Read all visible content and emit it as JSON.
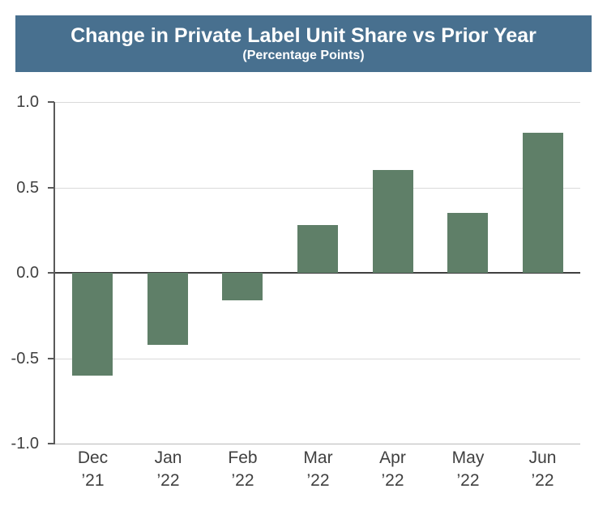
{
  "header": {
    "title": "Change in Private Label Unit Share vs Prior Year",
    "subtitle": "(Percentage Points)"
  },
  "chart_data": {
    "type": "bar",
    "title": "Change in Private Label Unit Share vs Prior Year",
    "subtitle": "(Percentage Points)",
    "categories": [
      "Dec ’21",
      "Jan ’22",
      "Feb ’22",
      "Mar ’22",
      "Apr ’22",
      "May ’22",
      "Jun ’22"
    ],
    "values": [
      -0.6,
      -0.42,
      -0.16,
      0.28,
      0.6,
      0.35,
      0.82
    ],
    "xlabel": "",
    "ylabel": "",
    "ylim": [
      -1.0,
      1.0
    ],
    "yticks": [
      1.0,
      0.5,
      0.0,
      -0.5,
      -1.0
    ],
    "ytick_labels": [
      "1.0",
      "0.5",
      "0.0",
      "-0.5",
      "-1.0"
    ],
    "grid": true,
    "legend": "none"
  },
  "colors": {
    "header_bg": "#48708f",
    "header_text": "#ffffff",
    "bar": "#5f7f68",
    "axis": "#595959",
    "zero_line": "#3f3f3f",
    "gridline": "#d9d9d9",
    "baseline_gridline": "#b9b9b9",
    "tick_text": "#404040",
    "background": "#ffffff"
  }
}
